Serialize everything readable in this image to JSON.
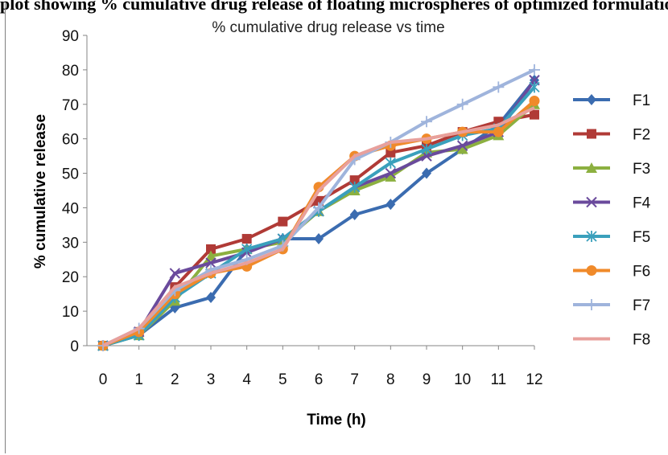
{
  "caption_top": "plot showing % cumulative drug release of floating microspheres of optimized formulations",
  "chart_data": {
    "type": "line",
    "title": "% cumulative drug release vs time",
    "xlabel": "Time (h)",
    "ylabel": "% cumulative release",
    "x": [
      0,
      1,
      2,
      3,
      4,
      5,
      6,
      7,
      8,
      9,
      10,
      11,
      12
    ],
    "ylim": [
      0,
      90
    ],
    "yticks": [
      0,
      10,
      20,
      30,
      40,
      50,
      60,
      70,
      80,
      90
    ],
    "grid": false,
    "legend_position": "right",
    "series": [
      {
        "name": "F1",
        "color": "#3b6cb0",
        "marker": "diamond",
        "values": [
          0,
          3,
          11,
          14,
          28,
          31,
          31,
          38,
          41,
          50,
          57,
          64,
          77
        ]
      },
      {
        "name": "F2",
        "color": "#b03a36",
        "marker": "square",
        "values": [
          0,
          4,
          17,
          28,
          31,
          36,
          42,
          48,
          56,
          58,
          62,
          65,
          67
        ]
      },
      {
        "name": "F3",
        "color": "#8cb040",
        "marker": "triangle",
        "values": [
          0,
          3,
          13,
          26,
          28,
          30,
          39,
          45,
          49,
          56,
          57,
          61,
          70
        ]
      },
      {
        "name": "F4",
        "color": "#6a4a9c",
        "marker": "x",
        "values": [
          0,
          4,
          21,
          24,
          27,
          31,
          39,
          46,
          50,
          55,
          58,
          62,
          77
        ]
      },
      {
        "name": "F5",
        "color": "#3aa0bc",
        "marker": "asterisk",
        "values": [
          0,
          3,
          14,
          21,
          28,
          31,
          39,
          46,
          53,
          57,
          61,
          63,
          75
        ]
      },
      {
        "name": "F6",
        "color": "#f08a2a",
        "marker": "circle",
        "values": [
          0,
          4,
          15,
          21,
          23,
          28,
          46,
          55,
          58,
          60,
          62,
          62,
          71
        ]
      },
      {
        "name": "F7",
        "color": "#9fb4dc",
        "marker": "plus",
        "values": [
          0,
          5,
          16,
          22,
          25,
          29,
          40,
          54,
          59,
          65,
          70,
          75,
          80
        ]
      },
      {
        "name": "F8",
        "color": "#e8a09c",
        "marker": "none",
        "values": [
          0,
          5,
          17,
          21,
          24,
          28,
          45,
          55,
          59,
          60,
          62,
          64,
          69
        ]
      }
    ]
  }
}
